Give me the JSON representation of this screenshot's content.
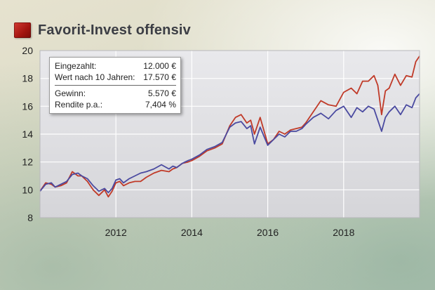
{
  "header": {
    "title": "Favorit-Invest offensiv"
  },
  "info_box": {
    "rows_top": [
      {
        "label": "Eingezahlt:",
        "value": "12.000 €"
      },
      {
        "label": "Wert nach 10 Jahren:",
        "value": "17.570 €"
      }
    ],
    "rows_bottom": [
      {
        "label": "Gewinn:",
        "value": "5.570 €"
      },
      {
        "label": "Rendite p.a.:",
        "value": "7,404 %"
      }
    ]
  },
  "chart_data": {
    "type": "line",
    "x_ticks": [
      2012,
      2014,
      2016,
      2018
    ],
    "y_ticks": [
      8,
      10,
      12,
      14,
      16,
      18,
      20
    ],
    "xlim": [
      2010.0,
      2020.0
    ],
    "ylim": [
      8,
      20
    ],
    "grid": true,
    "colors": {
      "series_red": "#c03a28",
      "series_blue": "#4a4aa0",
      "plot_bg": "#d9d9dc",
      "grid": "#ffffff"
    },
    "series": [
      {
        "x": [
          2010.0,
          2010.15,
          2010.3,
          2010.4,
          2010.55,
          2010.7,
          2010.85,
          2011.0,
          2011.1,
          2011.25,
          2011.4,
          2011.55,
          2011.7,
          2011.8,
          2011.9,
          2012.0,
          2012.1,
          2012.2,
          2012.35,
          2012.5,
          2012.65,
          2012.8,
          2013.0,
          2013.2,
          2013.4,
          2013.5,
          2013.6,
          2013.75,
          2013.9,
          2014.0,
          2014.2,
          2014.4,
          2014.6,
          2014.8,
          2015.0,
          2015.15,
          2015.3,
          2015.45,
          2015.55,
          2015.65,
          2015.8,
          2016.0,
          2016.15,
          2016.3,
          2016.45,
          2016.6,
          2016.75,
          2016.9,
          2017.0,
          2017.2,
          2017.4,
          2017.6,
          2017.8,
          2018.0,
          2018.2,
          2018.35,
          2018.5,
          2018.65,
          2018.8,
          2018.9,
          2019.0,
          2019.1,
          2019.2,
          2019.35,
          2019.5,
          2019.65,
          2019.8,
          2019.9,
          2020.0
        ],
        "y": [
          9.9,
          10.5,
          10.4,
          10.2,
          10.3,
          10.5,
          11.3,
          11.0,
          11.0,
          10.6,
          10.0,
          9.6,
          10.0,
          9.5,
          9.9,
          10.5,
          10.6,
          10.3,
          10.5,
          10.6,
          10.6,
          10.9,
          11.2,
          11.4,
          11.3,
          11.5,
          11.6,
          11.9,
          12.0,
          12.1,
          12.4,
          12.8,
          13.0,
          13.3,
          14.6,
          15.2,
          15.4,
          14.8,
          15.0,
          14.0,
          15.2,
          13.3,
          13.6,
          14.2,
          14.0,
          14.3,
          14.4,
          14.5,
          14.8,
          15.6,
          16.4,
          16.1,
          16.0,
          17.0,
          17.3,
          16.9,
          17.8,
          17.8,
          18.2,
          17.5,
          15.4,
          17.1,
          17.3,
          18.3,
          17.5,
          18.2,
          18.1,
          19.2,
          19.6
        ]
      },
      {
        "x": [
          2010.0,
          2010.15,
          2010.3,
          2010.4,
          2010.55,
          2010.7,
          2010.85,
          2011.0,
          2011.1,
          2011.25,
          2011.4,
          2011.55,
          2011.7,
          2011.8,
          2011.9,
          2012.0,
          2012.1,
          2012.2,
          2012.35,
          2012.5,
          2012.65,
          2012.8,
          2013.0,
          2013.2,
          2013.4,
          2013.5,
          2013.6,
          2013.75,
          2013.9,
          2014.0,
          2014.2,
          2014.4,
          2014.6,
          2014.8,
          2015.0,
          2015.15,
          2015.3,
          2015.45,
          2015.55,
          2015.65,
          2015.8,
          2016.0,
          2016.15,
          2016.3,
          2016.45,
          2016.6,
          2016.75,
          2016.9,
          2017.0,
          2017.2,
          2017.4,
          2017.6,
          2017.8,
          2018.0,
          2018.2,
          2018.35,
          2018.5,
          2018.65,
          2018.8,
          2018.9,
          2019.0,
          2019.1,
          2019.2,
          2019.35,
          2019.5,
          2019.65,
          2019.8,
          2019.9,
          2020.0
        ],
        "y": [
          9.9,
          10.4,
          10.5,
          10.2,
          10.4,
          10.6,
          11.1,
          11.2,
          11.0,
          10.8,
          10.3,
          9.9,
          10.1,
          9.8,
          10.1,
          10.7,
          10.8,
          10.5,
          10.8,
          11.0,
          11.2,
          11.3,
          11.5,
          11.8,
          11.5,
          11.7,
          11.6,
          11.9,
          12.1,
          12.2,
          12.5,
          12.9,
          13.1,
          13.4,
          14.5,
          14.8,
          14.9,
          14.4,
          14.6,
          13.3,
          14.5,
          13.2,
          13.6,
          14.0,
          13.8,
          14.2,
          14.2,
          14.4,
          14.7,
          15.2,
          15.5,
          15.1,
          15.7,
          16.0,
          15.2,
          15.9,
          15.6,
          16.0,
          15.8,
          15.0,
          14.2,
          15.2,
          15.6,
          16.0,
          15.4,
          16.1,
          15.9,
          16.6,
          16.9
        ]
      }
    ]
  }
}
